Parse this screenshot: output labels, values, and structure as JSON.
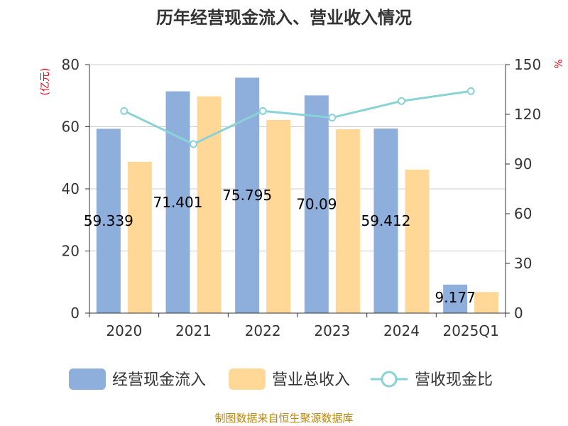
{
  "chart_data": {
    "type": "bar",
    "title": "历年经营现金流入、营业收入情况",
    "categories": [
      "2020",
      "2021",
      "2022",
      "2023",
      "2024",
      "2025Q1"
    ],
    "series": [
      {
        "name": "经营现金流入",
        "type": "bar",
        "axis": "left",
        "color": "#8eaedb",
        "values": [
          59.339,
          71.401,
          75.795,
          70.09,
          59.412,
          9.177
        ],
        "labels": [
          "59.339",
          "71.401",
          "75.795",
          "70.09",
          "59.412",
          "9.177"
        ]
      },
      {
        "name": "营业总收入",
        "type": "bar",
        "axis": "left",
        "color": "#ffd898",
        "values": [
          48.7,
          69.8,
          62.2,
          59.2,
          46.2,
          6.8
        ]
      },
      {
        "name": "营收现金比",
        "type": "line",
        "axis": "right",
        "color": "#89d3d6",
        "values": [
          122,
          102,
          122,
          118,
          128,
          134
        ]
      }
    ],
    "y_left": {
      "unit": "(亿元)",
      "min": 0,
      "max": 80,
      "ticks": [
        0,
        20,
        40,
        60,
        80
      ]
    },
    "y_right": {
      "unit": "%",
      "min": 0,
      "max": 150,
      "ticks": [
        0,
        30,
        60,
        90,
        120,
        150
      ]
    },
    "grid": true,
    "legend_position": "bottom",
    "source": "制图数据来自恒生聚源数据库"
  }
}
